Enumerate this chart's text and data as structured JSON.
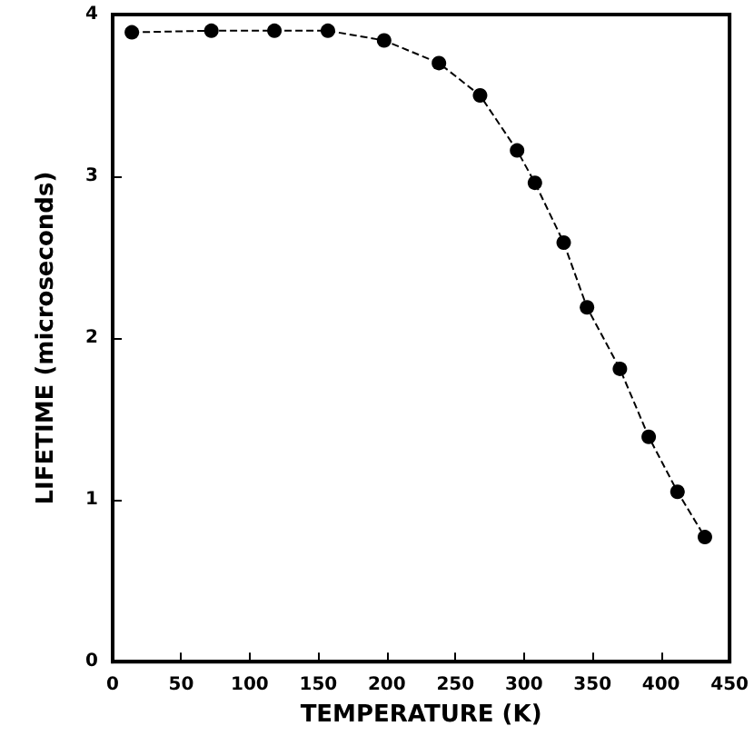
{
  "chart_data": {
    "type": "line",
    "xlabel": "TEMPERATURE (K)",
    "ylabel": "LIFETIME (microseconds)",
    "x": [
      14,
      72,
      118,
      157,
      198,
      238,
      268,
      295,
      308,
      329,
      346,
      370,
      391,
      412,
      432
    ],
    "series": [
      {
        "color": "#000000",
        "values": [
          3.89,
          3.9,
          3.9,
          3.9,
          3.84,
          3.7,
          3.5,
          3.16,
          2.96,
          2.59,
          2.19,
          1.81,
          1.39,
          1.05,
          0.77
        ]
      }
    ],
    "xlim": [
      0,
      450
    ],
    "xticks": [
      0,
      50,
      100,
      150,
      200,
      250,
      300,
      350,
      400,
      450
    ],
    "ylim": [
      0,
      4
    ],
    "yticks": [
      0,
      1,
      2,
      3,
      4
    ],
    "grid": false,
    "marker": "circle",
    "line_style": "dashed"
  }
}
